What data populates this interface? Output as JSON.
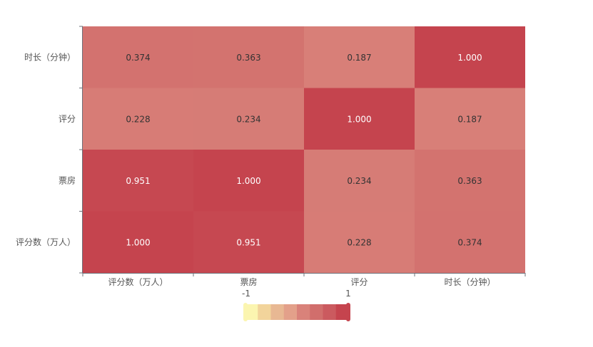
{
  "chart_data": {
    "type": "heatmap",
    "title": "",
    "x_categories": [
      "评分数（万人）",
      "票房",
      "评分",
      "时长（分钟）"
    ],
    "y_categories": [
      "评分数（万人）",
      "票房",
      "评分",
      "时长（分钟）"
    ],
    "values": [
      [
        1.0,
        0.951,
        0.228,
        0.374
      ],
      [
        0.951,
        1.0,
        0.234,
        0.363
      ],
      [
        0.228,
        0.234,
        1.0,
        0.187
      ],
      [
        0.374,
        0.363,
        0.187,
        1.0
      ]
    ],
    "value_labels": [
      [
        "1.000",
        "0.951",
        "0.228",
        "0.374"
      ],
      [
        "0.951",
        "1.000",
        "0.234",
        "0.363"
      ],
      [
        "0.228",
        "0.234",
        "1.000",
        "0.187"
      ],
      [
        "0.374",
        "0.363",
        "0.187",
        "1.000"
      ]
    ],
    "visual_map": {
      "min": -1,
      "max": 1,
      "min_label": "-1",
      "max_label": "1",
      "orient": "horizontal",
      "placement": "bottom-center",
      "colors": [
        "#fbf5b0",
        "#f2d49b",
        "#e8b893",
        "#e3a08a",
        "#d9827a",
        "#d16e6c",
        "#cb5a5f",
        "#c5444e"
      ]
    },
    "grid": false,
    "legend": "none"
  }
}
